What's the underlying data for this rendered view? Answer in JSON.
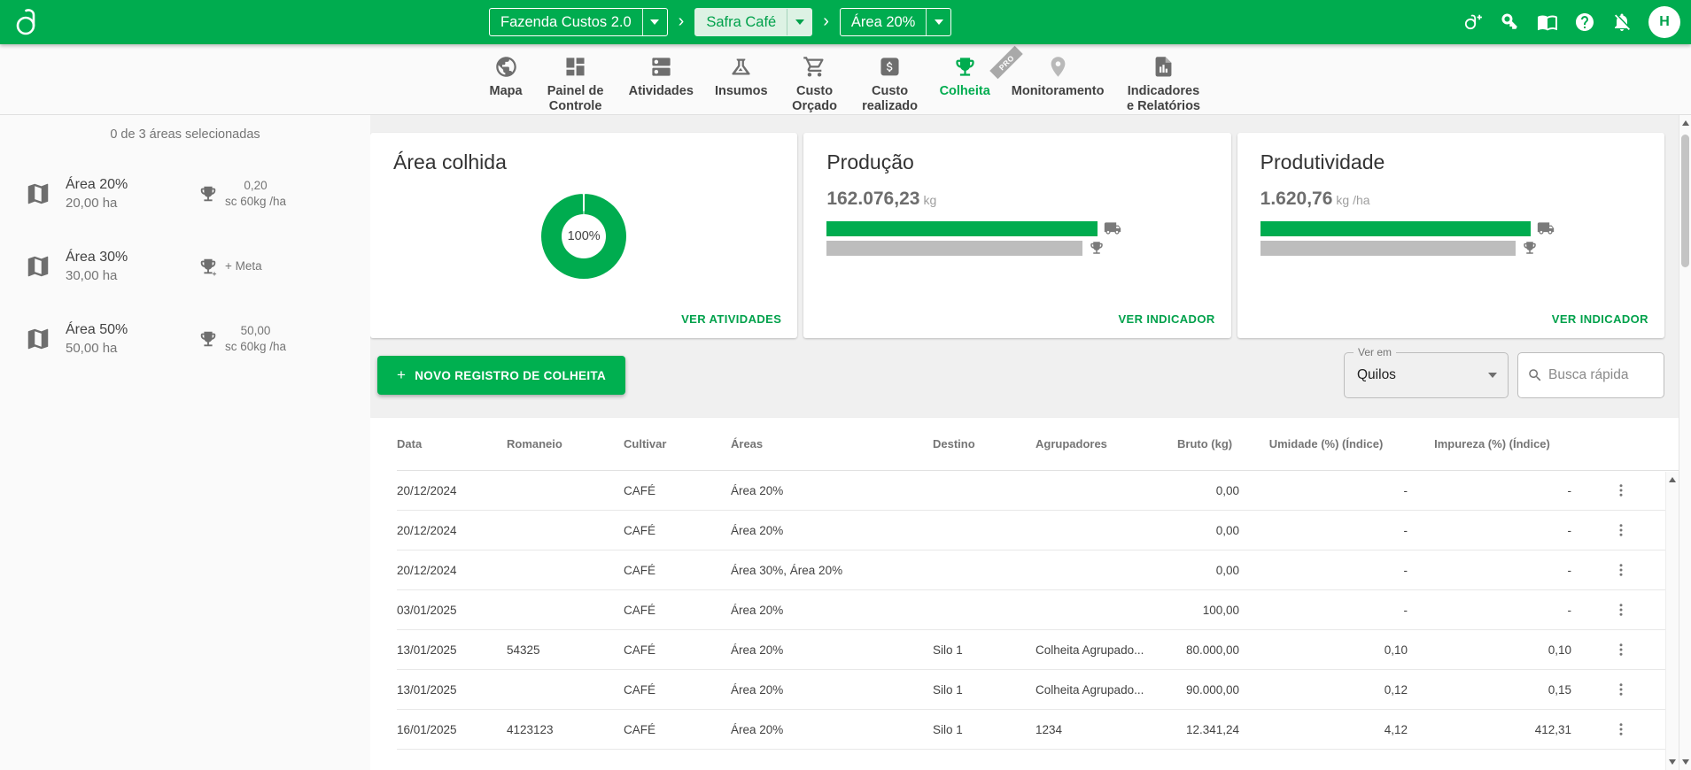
{
  "appbar": {
    "farm": "Fazenda Custos 2.0",
    "season": "Safra Café",
    "field": "Área 20%",
    "separator": "›",
    "avatar_initial": "H"
  },
  "nav": {
    "items": [
      {
        "label": "Mapa"
      },
      {
        "label": "Painel de Controle"
      },
      {
        "label": "Atividades"
      },
      {
        "label": "Insumos"
      },
      {
        "label": "Custo Orçado"
      },
      {
        "label": "Custo realizado"
      },
      {
        "label": "Colheita",
        "active": true
      },
      {
        "label": "Monitoramento",
        "badge": "PRO"
      },
      {
        "label": "Indicadores e Relatórios"
      }
    ]
  },
  "sidebar": {
    "summary": "0 de 3 áreas selecionadas",
    "areas": [
      {
        "name": "Área 20%",
        "size": "20,00 ha",
        "goal_value": "0,20",
        "goal_unit": "sc 60kg /ha"
      },
      {
        "name": "Área 30%",
        "size": "30,00 ha",
        "goal_value": "+ Meta",
        "goal_unit": ""
      },
      {
        "name": "Área 50%",
        "size": "50,00 ha",
        "goal_value": "50,00",
        "goal_unit": "sc 60kg /ha"
      }
    ]
  },
  "cards": {
    "area_colhida": {
      "title": "Área colhida",
      "percent": "100%",
      "link": "VER ATIVIDADES"
    },
    "producao": {
      "title": "Produção",
      "value": "162.076,23",
      "unit": "kg",
      "link": "VER INDICADOR",
      "bar_actual_pct": 71,
      "bar_goal_pct": 67
    },
    "produtividade": {
      "title": "Produtividade",
      "value": "1.620,76",
      "unit": "kg /ha",
      "link": "VER INDICADOR",
      "bar_actual_pct": 71,
      "bar_goal_pct": 67
    }
  },
  "toolbar": {
    "plus": "+",
    "new_record": "NOVO REGISTRO DE COLHEITA",
    "view_in_label": "Ver em",
    "view_in_value": "Quilos",
    "search_placeholder": "Busca rápida"
  },
  "table": {
    "headers": [
      "Data",
      "Romaneio",
      "Cultivar",
      "Áreas",
      "Destino",
      "Agrupadores",
      "Bruto (kg)",
      "Umidade (%) (Índice)",
      "Impureza (%) (Índice)"
    ],
    "rows": [
      [
        "20/12/2024",
        "",
        "CAFÉ",
        "Área 20%",
        "",
        "",
        "0,00",
        "-",
        "-"
      ],
      [
        "20/12/2024",
        "",
        "CAFÉ",
        "Área 20%",
        "",
        "",
        "0,00",
        "-",
        "-"
      ],
      [
        "20/12/2024",
        "",
        "CAFÉ",
        "Área 30%, Área 20%",
        "",
        "",
        "0,00",
        "-",
        "-"
      ],
      [
        "03/01/2025",
        "",
        "CAFÉ",
        "Área 20%",
        "",
        "",
        "100,00",
        "-",
        "-"
      ],
      [
        "13/01/2025",
        "54325",
        "CAFÉ",
        "Área 20%",
        "Silo 1",
        "Colheita Agrupado...",
        "80.000,00",
        "0,10",
        "0,10"
      ],
      [
        "13/01/2025",
        "",
        "CAFÉ",
        "Área 20%",
        "Silo 1",
        "Colheita Agrupado...",
        "90.000,00",
        "0,12",
        "0,15"
      ],
      [
        "16/01/2025",
        "4123123",
        "CAFÉ",
        "Área 20%",
        "Silo 1",
        "1234",
        "12.341,24",
        "4,12",
        "412,31"
      ]
    ]
  }
}
